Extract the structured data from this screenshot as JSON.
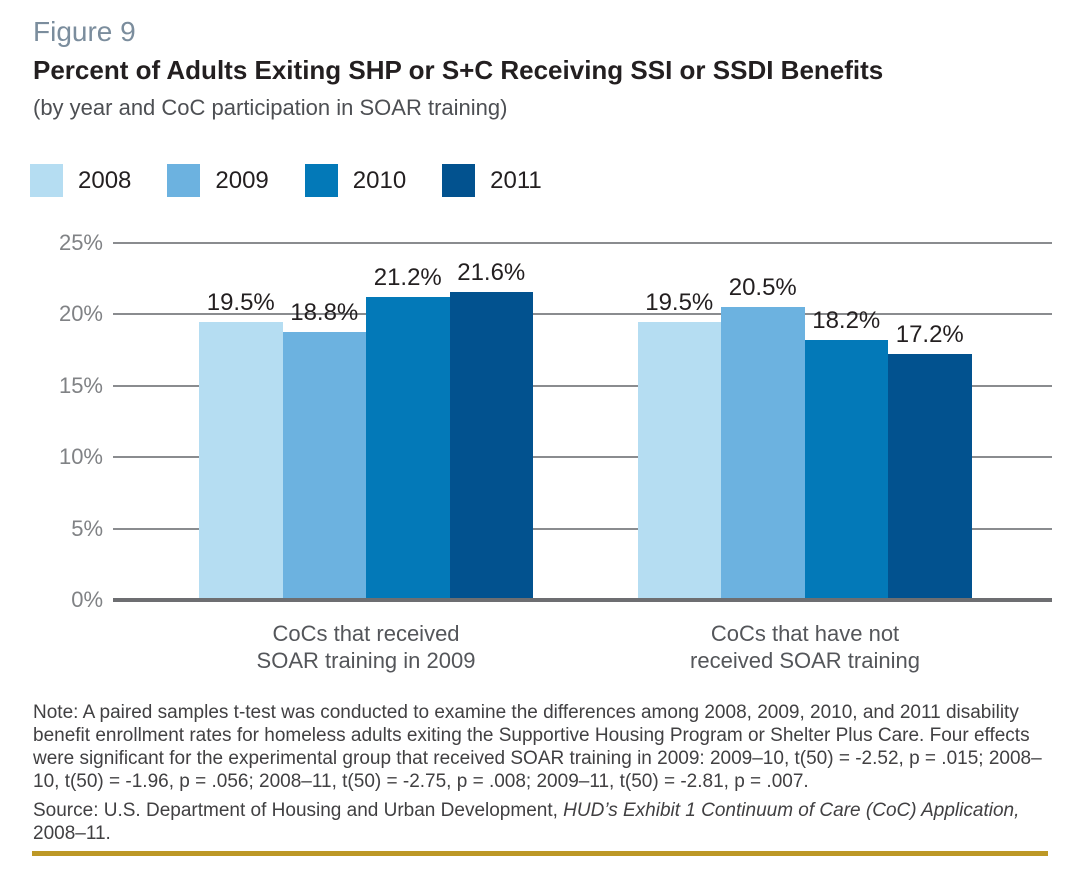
{
  "figure": {
    "label": "Figure 9",
    "title": "Percent of Adults Exiting SHP or S+C Receiving SSI or SSDI Benefits",
    "subtitle": "(by year and CoC participation in SOAR training)"
  },
  "chart_data": {
    "type": "bar",
    "title": "Percent of Adults Exiting SHP or S+C Receiving SSI or SSDI Benefits",
    "categories": [
      "CoCs that received SOAR training in 2009",
      "CoCs that have not received SOAR training"
    ],
    "categories_lines": [
      [
        "CoCs that received",
        "SOAR training in 2009"
      ],
      [
        "CoCs that have not",
        "received SOAR training"
      ]
    ],
    "series": [
      {
        "name": "2008",
        "color": "#B5DDF2",
        "values": [
          19.5,
          19.5
        ]
      },
      {
        "name": "2009",
        "color": "#6CB2E0",
        "values": [
          18.8,
          20.5
        ]
      },
      {
        "name": "2010",
        "color": "#0379B8",
        "values": [
          21.2,
          18.2
        ]
      },
      {
        "name": "2011",
        "color": "#02528F",
        "values": [
          21.6,
          17.2
        ]
      }
    ],
    "data_labels": [
      [
        "19.5%",
        "18.8%",
        "21.2%",
        "21.6%"
      ],
      [
        "19.5%",
        "20.5%",
        "18.2%",
        "17.2%"
      ]
    ],
    "xlabel": "",
    "ylabel": "",
    "ylim": [
      0,
      25
    ],
    "ytick_step": 5,
    "yticks": [
      "25%",
      "20%",
      "15%",
      "10%",
      "5%",
      "0%"
    ],
    "grid": true,
    "legend_position": "top"
  },
  "note": {
    "text": "Note: A paired samples t-test was conducted to examine the differences among 2008, 2009, 2010, and 2011 disability benefit enrollment rates for homeless adults exiting the Supportive Housing Program or Shelter Plus Care. Four effects were significant for the experimental group that received SOAR training in 2009: 2009–10, t(50) = -2.52, p = .015; 2008–10, t(50) = -1.96, p = .056; 2008–11, t(50) = -2.75, p = .008; 2009–11, t(50) = -2.81, p = .007."
  },
  "source": {
    "prefix": "Source: U.S. Department of Housing and Urban Development, ",
    "italic": "HUD’s Exhibit 1 Continuum of Care (CoC) Application,",
    "suffix": " 2008–11."
  },
  "colors": {
    "figure_label": "#7B8D9D",
    "title_text": "#231F20",
    "subtitle_text": "#4D4F53",
    "tick_text": "#808285",
    "category_text": "#54565A",
    "note_text": "#414042",
    "grid": "#8A8C8F",
    "axis": "#6D6E71",
    "accent_rule": "#BD9826"
  }
}
